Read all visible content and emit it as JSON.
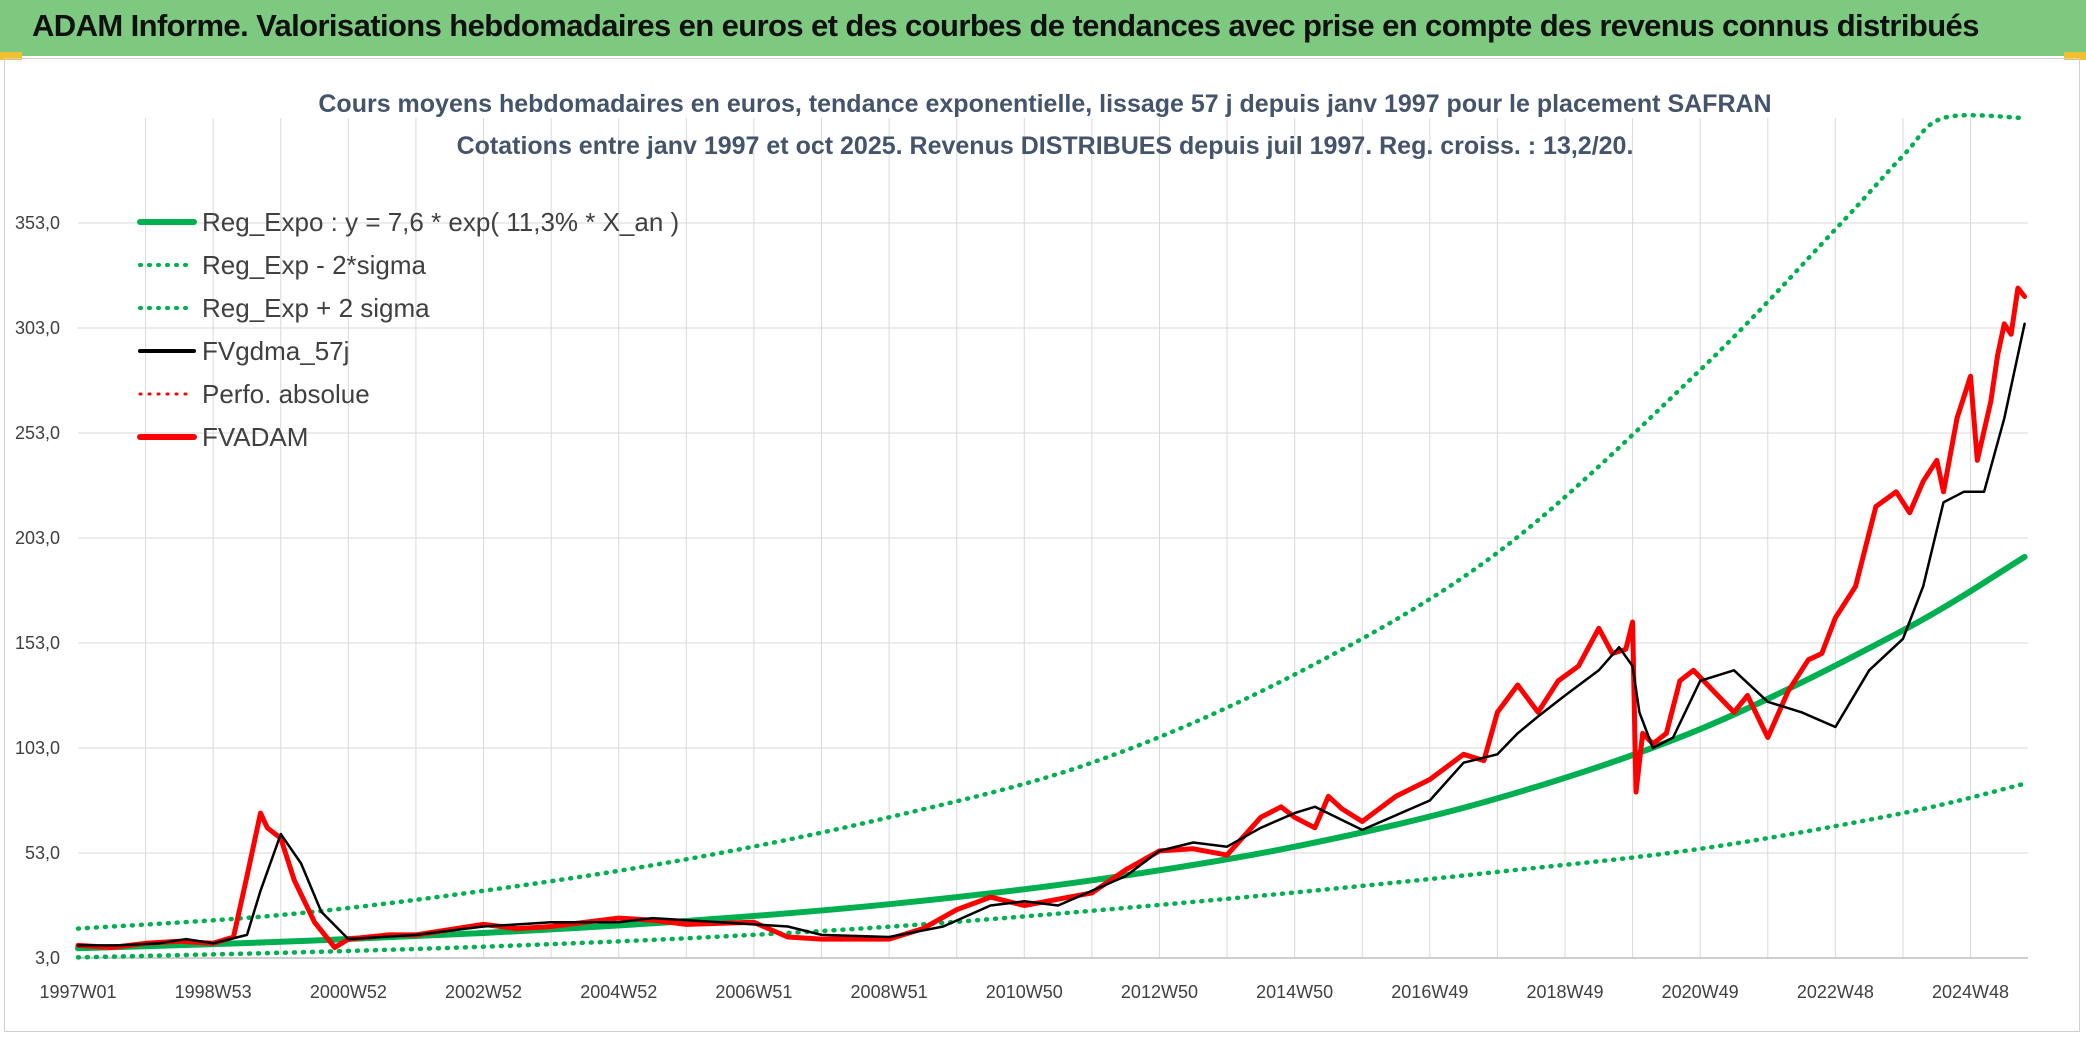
{
  "banner": {
    "title": "ADAM Informe. Valorisations hebdomadaires en euros et des courbes de tendances avec prise en compte des revenus connus distribués"
  },
  "colors": {
    "banner": "#7dc97f",
    "green": "#00b050",
    "red": "#ff0000",
    "black": "#000000",
    "grid": "#d9d9d9"
  },
  "chart_data": {
    "type": "line",
    "title": "Cours moyens hebdomadaires en euros, tendance exponentielle, lissage 57 j depuis janv 1997 pour le placement SAFRAN",
    "subtitle": "Cotations entre janv 1997 et oct 2025. Revenus DISTRIBUES depuis juil 1997. Reg. croiss. : 13,2/20.",
    "ylim": [
      3,
      403
    ],
    "yticks": [
      "3,0",
      "53,0",
      "103,0",
      "153,0",
      "203,0",
      "253,0",
      "303,0",
      "353,0"
    ],
    "ytick_values": [
      3,
      53,
      103,
      153,
      203,
      253,
      303,
      353
    ],
    "xlim": [
      1997.0,
      2025.85
    ],
    "xticks": [
      "1997W01",
      "1998W53",
      "2000W52",
      "2002W52",
      "2004W52",
      "2006W51",
      "2008W51",
      "2010W50",
      "2012W50",
      "2014W50",
      "2016W49",
      "2018W49",
      "2020W49",
      "2022W48",
      "2024W48"
    ],
    "xtick_values": [
      1997.0,
      1999.0,
      2001.0,
      2003.0,
      2005.0,
      2007.0,
      2009.0,
      2011.0,
      2013.0,
      2015.0,
      2017.0,
      2019.0,
      2021.0,
      2023.0,
      2025.0
    ],
    "legend": [
      {
        "label": "Reg_Expo : y = 7,6 * exp( 11,3% *  X_an )",
        "color": "#00b050",
        "style": "solid",
        "width": 6
      },
      {
        "label": "Reg_Exp - 2*sigma",
        "color": "#00b050",
        "style": "dotted",
        "width": 4
      },
      {
        "label": "Reg_Exp + 2 sigma",
        "color": "#00b050",
        "style": "dotted",
        "width": 4
      },
      {
        "label": "FVgdma_57j",
        "color": "#000000",
        "style": "solid",
        "width": 4
      },
      {
        "label": "Perfo. absolue",
        "color": "#ff0000",
        "style": "dotted",
        "width": 3
      },
      {
        "label": "FVADAM",
        "color": "#ff0000",
        "style": "solid",
        "width": 6
      }
    ],
    "series": [
      {
        "name": "Reg_Expo",
        "x": [
          1997,
          2000,
          2003,
          2006,
          2009,
          2012,
          2015,
          2018,
          2021,
          2024,
          2025.8
        ],
        "y": [
          7.6,
          10.7,
          14.9,
          20.6,
          28.6,
          40.0,
          56.0,
          79.0,
          112.0,
          159.0,
          194.0
        ]
      },
      {
        "name": "Reg_Exp - 2*sigma",
        "x": [
          1997,
          2000,
          2003,
          2006,
          2009,
          2012,
          2015,
          2018,
          2021,
          2024,
          2025.8
        ],
        "y": [
          3.3,
          5.5,
          8.4,
          12.4,
          17.9,
          25.5,
          34.2,
          44.0,
          55.0,
          72.0,
          86.0
        ]
      },
      {
        "name": "Reg_Exp + 2 sigma",
        "x": [
          1997,
          2000,
          2003,
          2006,
          2009,
          2012,
          2015,
          2018,
          2021,
          2023,
          2024,
          2024.6,
          2025.8
        ],
        "y": [
          17.0,
          23.5,
          35.0,
          50.0,
          70.0,
          96.0,
          138.0,
          196.0,
          283.0,
          350.0,
          385.0,
          403.0,
          403.0
        ]
      },
      {
        "name": "FVgdma_57j",
        "x": [
          1997,
          1997.6,
          1998.2,
          1998.6,
          1999.0,
          1999.5,
          1999.7,
          2000.0,
          2000.3,
          2000.6,
          2001.0,
          2001.5,
          2002.0,
          2003.0,
          2004.0,
          2005.0,
          2005.5,
          2006.5,
          2007.5,
          2008.0,
          2009.0,
          2009.8,
          2010.5,
          2011.0,
          2011.5,
          2012.0,
          2012.5,
          2013.0,
          2013.5,
          2014.0,
          2014.5,
          2015.0,
          2015.3,
          2016.0,
          2017.0,
          2017.5,
          2018.0,
          2018.3,
          2018.6,
          2019.0,
          2019.5,
          2019.8,
          2020.0,
          2020.1,
          2020.3,
          2020.6,
          2021.0,
          2021.5,
          2022.0,
          2022.5,
          2023.0,
          2023.5,
          2024.0,
          2024.3,
          2024.6,
          2024.9,
          2025.2,
          2025.5,
          2025.8
        ],
        "y": [
          9,
          9,
          10,
          12,
          10,
          14,
          35,
          62,
          48,
          25,
          12,
          13,
          14,
          18,
          20,
          20,
          22,
          20,
          18,
          14,
          13,
          18,
          28,
          30,
          28,
          35,
          42,
          54,
          58,
          56,
          65,
          72,
          75,
          64,
          78,
          96,
          100,
          110,
          118,
          128,
          140,
          151,
          142,
          120,
          103,
          108,
          135,
          140,
          125,
          120,
          113,
          140,
          155,
          180,
          220,
          225,
          225,
          260,
          305
        ]
      },
      {
        "name": "FVADAM",
        "x": [
          1997,
          1997.5,
          1998.0,
          1998.5,
          1999.0,
          1999.3,
          1999.5,
          1999.7,
          1999.8,
          2000.0,
          2000.2,
          2000.5,
          2000.8,
          2001.0,
          2001.3,
          2001.6,
          2002.0,
          2003.0,
          2003.5,
          2004.0,
          2005.0,
          2005.5,
          2006.0,
          2007.0,
          2007.5,
          2008.0,
          2009.0,
          2009.5,
          2010.0,
          2010.5,
          2011.0,
          2011.5,
          2012.0,
          2012.5,
          2013.0,
          2013.5,
          2014.0,
          2014.5,
          2014.8,
          2015.0,
          2015.3,
          2015.5,
          2015.7,
          2016.0,
          2016.5,
          2017.0,
          2017.5,
          2017.8,
          2018.0,
          2018.3,
          2018.6,
          2018.9,
          2019.2,
          2019.5,
          2019.7,
          2019.9,
          2020.0,
          2020.05,
          2020.15,
          2020.3,
          2020.5,
          2020.7,
          2020.9,
          2021.2,
          2021.5,
          2021.7,
          2022.0,
          2022.3,
          2022.6,
          2022.8,
          2023.0,
          2023.3,
          2023.6,
          2023.9,
          2024.1,
          2024.3,
          2024.5,
          2024.6,
          2024.8,
          2025.0,
          2025.1,
          2025.3,
          2025.4,
          2025.5,
          2025.6,
          2025.7,
          2025.8
        ],
        "y": [
          9,
          8,
          10,
          11,
          10,
          13,
          42,
          72,
          65,
          60,
          40,
          20,
          8,
          12,
          13,
          14,
          14,
          19,
          17,
          18,
          22,
          21,
          19,
          20,
          13,
          12,
          12,
          17,
          26,
          32,
          28,
          31,
          34,
          45,
          54,
          55,
          52,
          70,
          75,
          70,
          65,
          80,
          74,
          68,
          80,
          88,
          100,
          97,
          120,
          133,
          120,
          135,
          142,
          160,
          148,
          150,
          163,
          82,
          110,
          105,
          110,
          135,
          140,
          130,
          120,
          128,
          108,
          130,
          145,
          148,
          165,
          180,
          218,
          225,
          215,
          230,
          240,
          225,
          260,
          280,
          240,
          268,
          290,
          305,
          300,
          322,
          318
        ]
      }
    ]
  }
}
